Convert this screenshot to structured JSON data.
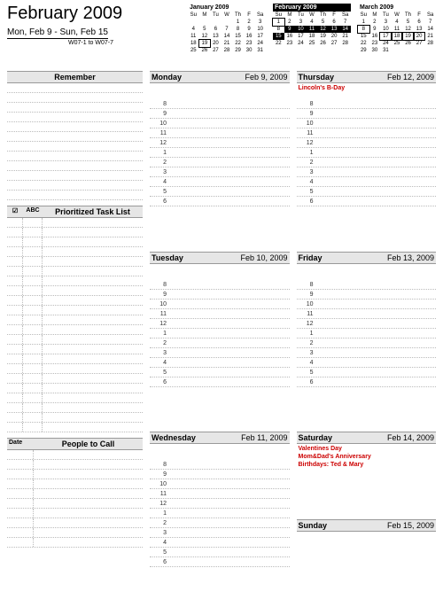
{
  "header": {
    "month_title": "February 2009",
    "week_range": "Mon, Feb 9  -  Sun, Feb 15",
    "week_codes": "W07-1 to W07-7"
  },
  "mini_calendars": [
    {
      "title": "January 2009",
      "current": false,
      "dow": [
        "Su",
        "M",
        "Tu",
        "W",
        "Th",
        "F",
        "Sa"
      ],
      "weeks": [
        [
          "",
          "",
          "",
          "",
          1,
          2,
          3
        ],
        [
          4,
          5,
          6,
          7,
          8,
          9,
          10
        ],
        [
          11,
          12,
          13,
          14,
          15,
          16,
          17
        ],
        [
          18,
          19,
          20,
          21,
          22,
          23,
          24
        ],
        [
          25,
          26,
          27,
          28,
          29,
          30,
          31
        ]
      ],
      "highlight": [],
      "boxed": [
        19
      ]
    },
    {
      "title": "February 2009",
      "current": true,
      "dow": [
        "Su",
        "M",
        "Tu",
        "W",
        "Th",
        "F",
        "Sa"
      ],
      "weeks": [
        [
          1,
          2,
          3,
          4,
          5,
          6,
          7
        ],
        [
          8,
          9,
          10,
          11,
          12,
          13,
          14
        ],
        [
          15,
          16,
          17,
          18,
          19,
          20,
          21
        ],
        [
          22,
          23,
          24,
          25,
          26,
          27,
          28
        ],
        [
          "",
          "",
          "",
          "",
          "",
          "",
          ""
        ]
      ],
      "highlight": [
        9,
        10,
        11,
        12,
        13,
        14,
        15
      ],
      "boxed": [
        1
      ]
    },
    {
      "title": "March 2009",
      "current": false,
      "dow": [
        "Su",
        "M",
        "Tu",
        "W",
        "Th",
        "F",
        "Sa"
      ],
      "weeks": [
        [
          1,
          2,
          3,
          4,
          5,
          6,
          7
        ],
        [
          8,
          9,
          10,
          11,
          12,
          13,
          14
        ],
        [
          15,
          16,
          17,
          18,
          19,
          20,
          21
        ],
        [
          22,
          23,
          24,
          25,
          26,
          27,
          28
        ],
        [
          29,
          30,
          31,
          "",
          "",
          "",
          ""
        ]
      ],
      "highlight": [],
      "boxed": [
        8,
        17,
        18,
        19,
        20
      ]
    }
  ],
  "sidebar": {
    "remember_title": "Remember",
    "remember_lines": 12,
    "task_title": "Prioritized Task List",
    "task_col1": "☑",
    "task_col2": "ABC",
    "task_lines": 22,
    "ptc_title": "People to Call",
    "ptc_col1": "Date",
    "ptc_lines": 10
  },
  "hours": [
    8,
    9,
    10,
    11,
    12,
    1,
    2,
    3,
    4,
    5,
    6
  ],
  "days": [
    {
      "name": "Monday",
      "date": "Feb 9, 2009",
      "events": []
    },
    {
      "name": "Tuesday",
      "date": "Feb 10, 2009",
      "events": []
    },
    {
      "name": "Wednesday",
      "date": "Feb 11, 2009",
      "events": []
    },
    {
      "name": "Thursday",
      "date": "Feb 12, 2009",
      "events": [
        "Lincoln's B-Day"
      ]
    },
    {
      "name": "Friday",
      "date": "Feb 13, 2009",
      "events": []
    },
    {
      "name": "Saturday",
      "date": "Feb 14, 2009",
      "events": [
        "Valentines Day",
        "Mom&Dad's Anniversary",
        "Birthdays: Ted & Mary"
      ]
    },
    {
      "name": "Sunday",
      "date": "Feb 15, 2009",
      "events": []
    }
  ],
  "colors": {
    "header_bg": "#e6e6e6",
    "rule": "#999999",
    "dotted": "#bbbbbb",
    "event": "#cc0000"
  }
}
